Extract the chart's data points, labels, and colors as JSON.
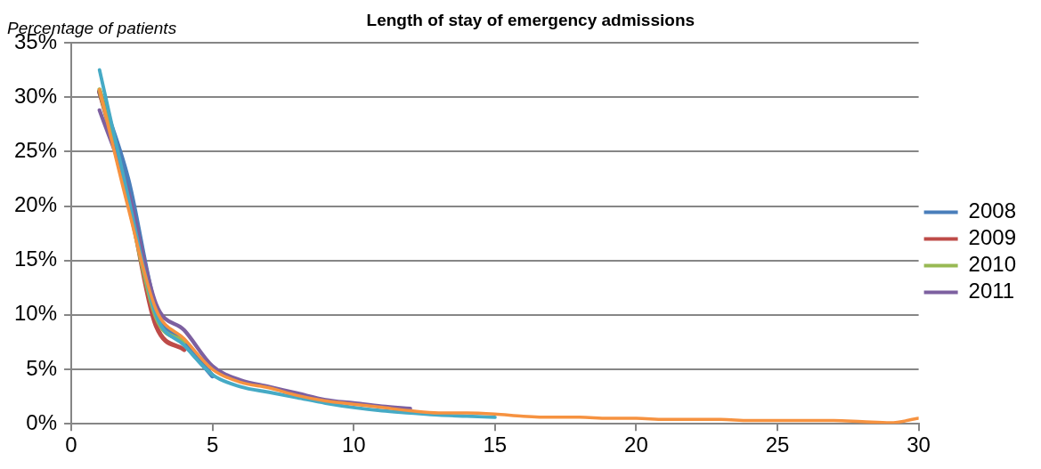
{
  "chart_data": {
    "type": "line",
    "title": "Length of stay of emergency admissions",
    "ylabel": "Percentage of patients",
    "x": [
      1,
      2,
      3,
      4,
      5,
      6,
      7,
      8,
      9,
      10,
      11,
      12,
      13,
      14,
      15,
      16,
      17,
      18,
      19,
      20,
      21,
      22,
      23,
      24,
      25,
      26,
      27,
      28,
      29,
      30
    ],
    "xlim": [
      0,
      30
    ],
    "xticks": [
      0,
      5,
      10,
      15,
      20,
      25,
      30
    ],
    "ylim": [
      0,
      35
    ],
    "yticks": [
      {
        "value": 0,
        "label": "0%"
      },
      {
        "value": 5,
        "label": "5%"
      },
      {
        "value": 10,
        "label": "10%"
      },
      {
        "value": 15,
        "label": "15%"
      },
      {
        "value": 20,
        "label": "20%"
      },
      {
        "value": 25,
        "label": "25%"
      },
      {
        "value": 30,
        "label": "30%"
      },
      {
        "value": 35,
        "label": "35%"
      }
    ],
    "grid": "y",
    "legend": "right",
    "marker": "none",
    "line_style": "solid",
    "series": [
      {
        "name": "2008",
        "color": "#4a7ebb",
        "values": [
          30.5,
          22.5,
          10.5,
          7.4,
          4.4,
          null,
          null,
          null,
          null,
          null,
          null,
          null,
          null,
          null,
          null,
          null,
          null,
          null,
          null,
          null,
          null,
          null,
          null,
          null,
          null,
          null,
          null,
          null,
          null,
          null
        ]
      },
      {
        "name": "2009",
        "color": "#be4b48",
        "values": [
          30.5,
          21,
          9.0,
          6.8,
          null,
          null,
          null,
          null,
          null,
          null,
          null,
          null,
          null,
          null,
          null,
          null,
          null,
          null,
          null,
          null,
          null,
          null,
          null,
          null,
          null,
          null,
          null,
          null,
          null,
          null
        ]
      },
      {
        "name": "2010",
        "color": "#98b954",
        "values": [
          30.7,
          20.5,
          9.8,
          7.5,
          null,
          null,
          null,
          null,
          null,
          null,
          null,
          null,
          null,
          null,
          null,
          null,
          null,
          null,
          null,
          null,
          null,
          null,
          null,
          null,
          null,
          null,
          null,
          null,
          null,
          null
        ]
      },
      {
        "name": "2011",
        "color": "#7d60a0",
        "values": [
          28.8,
          21.5,
          11,
          8.6,
          5.3,
          4.0,
          3.4,
          2.8,
          2.2,
          1.9,
          1.6,
          1.4,
          null,
          null,
          null,
          null,
          null,
          null,
          null,
          null,
          null,
          null,
          null,
          null,
          null,
          null,
          null,
          null,
          null,
          null
        ]
      },
      {
        "color": "#46aac5",
        "values": [
          32.5,
          21,
          10,
          7.2,
          4.5,
          3.4,
          2.9,
          2.4,
          1.9,
          1.5,
          1.2,
          1.0,
          0.8,
          0.7,
          0.6,
          null,
          null,
          null,
          null,
          null,
          null,
          null,
          null,
          null,
          null,
          null,
          null,
          null,
          null,
          null
        ]
      },
      {
        "color": "#f69240",
        "values": [
          30.7,
          20,
          10.5,
          7.8,
          5.0,
          3.8,
          3.3,
          2.6,
          2.1,
          1.8,
          1.5,
          1.2,
          1.0,
          1.0,
          0.9,
          0.7,
          0.6,
          0.6,
          0.5,
          0.5,
          0.4,
          0.4,
          0.4,
          0.3,
          0.3,
          0.3,
          0.3,
          0.2,
          0.1,
          0.5
        ]
      }
    ]
  }
}
